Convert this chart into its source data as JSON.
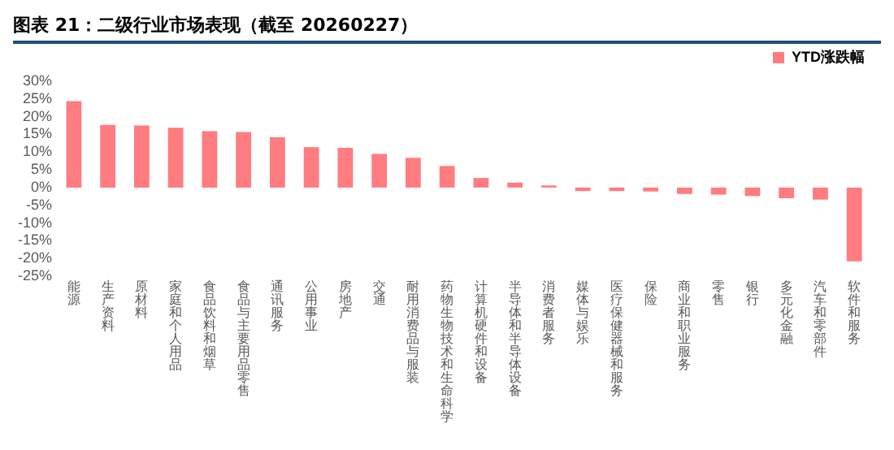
{
  "chart_data": {
    "type": "bar",
    "title": "图表 21：二级行业市场表现（截至 20260227）",
    "categories": [
      "能源",
      "生产资料",
      "原材料",
      "家庭和个人用品",
      "食品饮料和烟草",
      "食品与主要用品零售",
      "通讯服务",
      "公用事业",
      "房地产",
      "交通",
      "耐用消费品与服装",
      "药物生物技术和生命科学",
      "计算机硬件和设备",
      "半导体和半导体设备",
      "消费者服务",
      "媒体与娱乐",
      "医疗保健器械和服务",
      "保险",
      "商业和职业服务",
      "零售",
      "银行",
      "多元化金融",
      "汽车和零部件",
      "软件和服务"
    ],
    "series": [
      {
        "name": "YTD涨跌幅",
        "color": "#ff7c80",
        "values": [
          24.4,
          17.7,
          17.5,
          16.9,
          15.9,
          15.7,
          14.2,
          11.4,
          11.2,
          9.5,
          8.4,
          6.1,
          2.7,
          1.4,
          0.6,
          -1.0,
          -1.0,
          -1.1,
          -1.8,
          -2.0,
          -2.4,
          -3.0,
          -3.4,
          -20.8
        ]
      }
    ],
    "ylim": [
      -25,
      30
    ],
    "yticks": [
      {
        "value": -25,
        "label": "-25%"
      },
      {
        "value": -20,
        "label": "-20%"
      },
      {
        "value": -15,
        "label": "-15%"
      },
      {
        "value": -10,
        "label": "-10%"
      },
      {
        "value": -5,
        "label": "-5%"
      },
      {
        "value": 0,
        "label": "0%"
      },
      {
        "value": 5,
        "label": "5%"
      },
      {
        "value": 10,
        "label": "10%"
      },
      {
        "value": 15,
        "label": "15%"
      },
      {
        "value": 20,
        "label": "20%"
      },
      {
        "value": 25,
        "label": "25%"
      },
      {
        "value": 30,
        "label": "30%"
      }
    ],
    "grid": false,
    "legend": "top right"
  }
}
